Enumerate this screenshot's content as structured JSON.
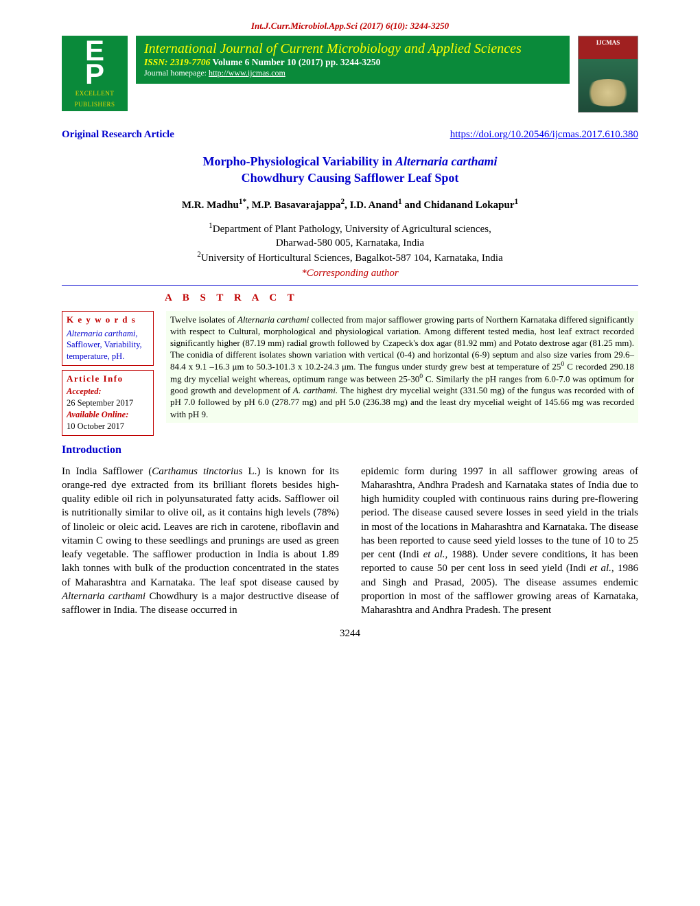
{
  "header": {
    "citation": "Int.J.Curr.Microbiol.App.Sci (2017) 6(10): 3244-3250",
    "journal_title": "International Journal of Current Microbiology and Applied Sciences",
    "issn_label": "ISSN: 2319-7706",
    "volume_info": " Volume 6 Number 10 (2017) pp. 3244-3250",
    "homepage_label": "Journal homepage: ",
    "homepage_url": "http://www.ijcmas.com",
    "publisher_ep_top": "E",
    "publisher_ep_bot": "P",
    "publisher_label1": "EXCELLENT",
    "publisher_label2": "PUBLISHERS"
  },
  "article_type": "Original Research Article",
  "doi_url": "https://doi.org/10.20546/ijcmas.2017.610.380",
  "title_line1_a": "Morpho-Physiological Variability in ",
  "title_line1_b": "Alternaria carthami",
  "title_line2": "Chowdhury Causing Safflower Leaf Spot",
  "authors_html": "M.R. Madhu<sup>1*</sup>, M.P. Basavarajappa<sup>2</sup>, I.D. Anand<sup>1</sup> and Chidanand Lokapur<sup>1</sup>",
  "aff1": "<sup>1</sup>Department of Plant Pathology, University of Agricultural sciences,",
  "aff1b": "Dharwad-580 005, Karnataka, India",
  "aff2": "<sup>2</sup>University of Horticultural Sciences, Bagalkot-587 104, Karnataka, India",
  "corr_label": "*Corresponding author",
  "abstract_label": "A B S T R A C T",
  "keywords": {
    "heading": "K e y w o r d s",
    "body": "<span class=\"it\">Alternaria carthami</span>, Safflower, Variability, temperature, pH."
  },
  "article_info": {
    "heading": "Article Info",
    "accepted_label": "Accepted:",
    "accepted_date": "26 September 2017",
    "available_label": "Available Online:",
    "available_date": "10 October 2017"
  },
  "abstract_text": "Twelve isolates of <span class=\"it\">Alternaria carthami</span> collected from major safflower growing parts of Northern Karnataka differed significantly with respect to Cultural, morphological and physiological variation. Among different tested media, host leaf extract recorded significantly higher (87.19 mm) radial growth followed by Czapeck's dox agar (81.92 mm) and Potato dextrose agar (81.25 mm). The conidia of different isolates shown variation with vertical (0-4) and horizontal (6-9) septum and also size varies from 29.6–84.4 x 9.1 –16.3 μm to 50.3-101.3 x 10.2-24.3 μm. The fungus under sturdy grew best at temperature of 25<sup>0</sup> C recorded 290.18 mg dry mycelial weight whereas, optimum range was between 25-30<sup>0</sup> C. Similarly the pH ranges from 6.0-7.0 was optimum for good growth and development of <span class=\"it\">A. carthami.</span> The highest dry mycelial weight (331.50 mg) of the fungus was recorded with of pH 7.0 followed by pH 6.0 (278.77 mg) and pH 5.0 (236.38 mg) and the least dry mycelial weight of 145.66 mg was recorded with pH 9.",
  "intro_heading": "Introduction",
  "intro_col1": "In India Safflower (<span class=\"it\">Carthamus tinctorius</span> L.) is known for its orange-red dye extracted from its brilliant florets besides high-quality edible oil rich in polyunsaturated fatty acids. Safflower oil is nutritionally similar to olive oil, as it contains high levels (78%) of linoleic or oleic acid. Leaves are rich in carotene, riboflavin and vitamin C owing to these seedlings and prunings are used as green leafy vegetable. The safflower production in India is about 1.89 lakh tonnes with bulk of the production concentrated in the states of Maharashtra and Karnataka. The leaf spot disease caused by <span class=\"it\">Alternaria carthami</span> Chowdhury is a major destructive disease of safflower in India. The disease occurred in",
  "intro_col2": "epidemic form during 1997 in all safflower growing areas of Maharashtra, Andhra Pradesh and Karnataka states of India due to high humidity coupled with continuous rains during pre-flowering period. The disease caused severe losses in seed yield in the trials in most of the locations in Maharashtra and Karnataka. The disease has been reported to cause seed yield losses to the tune of 10 to 25 per cent (Indi <span class=\"it\">et al.,</span> 1988). Under severe conditions, it has been reported to cause 50 per cent loss in seed yield (Indi <span class=\"it\">et al.,</span> 1986 and Singh and Prasad, 2005). The disease assumes endemic proportion in most of the safflower growing areas of Karnataka, Maharashtra and Andhra Pradesh. The present",
  "page_number": "3244"
}
